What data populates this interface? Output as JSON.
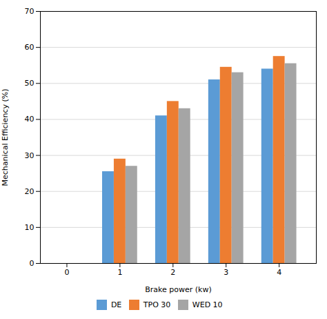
{
  "chart_data": {
    "type": "bar",
    "xlabel": "Brake power (kw)",
    "ylabel": "Mechanical Efficiency (%)",
    "x": [
      1,
      2,
      3,
      4
    ],
    "series": [
      {
        "name": "DE",
        "color": "#5B9BD5",
        "values": [
          25.5,
          41.0,
          51.0,
          54.0
        ]
      },
      {
        "name": "TPO 30",
        "color": "#ED7D31",
        "values": [
          29.0,
          45.0,
          54.5,
          57.5
        ]
      },
      {
        "name": "WED 10",
        "color": "#A5A5A5",
        "values": [
          27.0,
          43.0,
          53.0,
          55.5
        ]
      }
    ],
    "xlim": [
      -0.5,
      4.7
    ],
    "xticks": [
      0,
      1,
      2,
      3,
      4
    ],
    "ylim": [
      0,
      70
    ],
    "yticks": [
      0,
      10,
      20,
      30,
      40,
      50,
      60,
      70
    ],
    "grid": true,
    "legend": "bottom"
  }
}
